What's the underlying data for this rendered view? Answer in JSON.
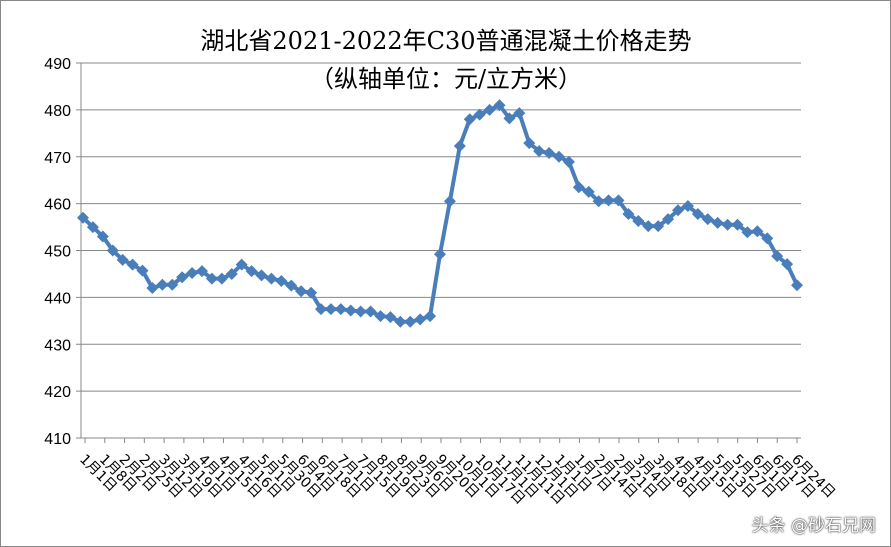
{
  "chart_data": {
    "type": "line",
    "title": "湖北省2021-2022年C30普通混凝土价格走势",
    "subtitle": "（纵轴单位：元/立方米）",
    "xlabel": "",
    "ylabel": "",
    "ylim": [
      410,
      490
    ],
    "yticks": [
      410,
      420,
      430,
      440,
      450,
      460,
      470,
      480,
      490
    ],
    "grid": true,
    "legend": "none",
    "marker": "diamond",
    "color": "#4a7ebb",
    "x_labels": [
      "1月1日",
      "1月8日",
      "2月2日",
      "2月25日",
      "3月12日",
      "3月19日",
      "4月1日",
      "4月15日",
      "4月16日",
      "5月1日",
      "5月30日",
      "6月4日",
      "6月18日",
      "7月1日",
      "7月15日",
      "8月19日",
      "8月23日",
      "9月6日",
      "9月20日",
      "10月1日",
      "10月17日",
      "11月1日",
      "11月11日",
      "12月1日",
      "1月1日",
      "1月7日",
      "2月14日",
      "2月21日",
      "3月4日",
      "3月18日",
      "4月1日",
      "4月15日",
      "5月13日",
      "5月27日",
      "6月1日",
      "6月17日",
      "6月24日"
    ],
    "values": [
      457,
      455,
      453,
      450,
      448,
      447,
      445.7,
      442,
      442.7,
      442.7,
      444.3,
      445.2,
      445.6,
      444,
      444,
      445,
      447,
      445.6,
      444.7,
      444,
      443.5,
      442.5,
      441.3,
      441,
      437.5,
      437.5,
      437.5,
      437.2,
      437,
      437,
      436,
      435.8,
      434.8,
      434.8,
      435.3,
      436,
      449.2,
      460.5,
      472.3,
      478,
      479,
      480,
      481,
      478.2,
      479.3,
      472.9,
      471.2,
      470.8,
      470,
      468.9,
      463.5,
      462.5,
      460.5,
      460.7,
      460.7,
      457.8,
      456.3,
      455.2,
      455.2,
      456.7,
      458.6,
      459.5,
      457.8,
      456.7,
      455.9,
      455.5,
      455.5,
      453.9,
      454.1,
      452.6,
      448.8,
      447.1,
      442.6
    ]
  },
  "watermark": "头条 @砂石兄网"
}
